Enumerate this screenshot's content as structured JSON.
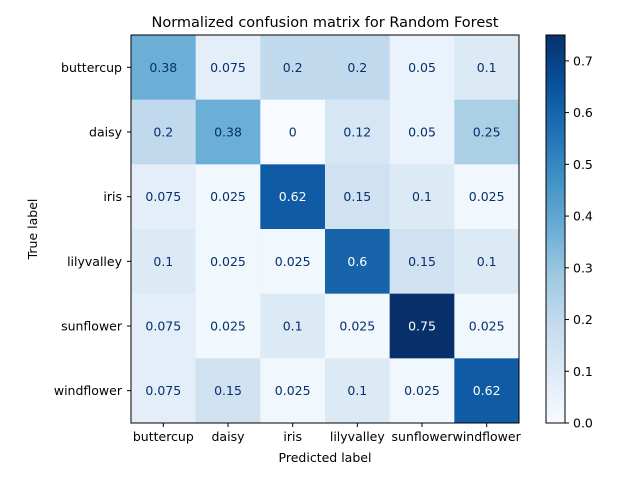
{
  "chart_data": {
    "type": "heatmap",
    "title": "Normalized confusion matrix for Random Forest",
    "xlabel": "Predicted label",
    "ylabel": "True label",
    "row_labels": [
      "buttercup",
      "daisy",
      "iris",
      "lilyvalley",
      "sunflower",
      "windflower"
    ],
    "col_labels": [
      "buttercup",
      "daisy",
      "iris",
      "lilyvalley",
      "sunflower",
      "windflower"
    ],
    "values": [
      [
        0.375,
        0.075,
        0.2,
        0.2,
        0.05,
        0.1
      ],
      [
        0.2,
        0.375,
        0,
        0.125,
        0.05,
        0.25
      ],
      [
        0.075,
        0.025,
        0.625,
        0.15,
        0.1,
        0.025
      ],
      [
        0.1,
        0.025,
        0.025,
        0.6,
        0.15,
        0.1
      ],
      [
        0.075,
        0.025,
        0.1,
        0.025,
        0.75,
        0.025
      ],
      [
        0.075,
        0.15,
        0.025,
        0.1,
        0.025,
        0.625
      ]
    ],
    "value_labels": [
      [
        "0.38",
        "0.075",
        "0.2",
        "0.2",
        "0.05",
        "0.1"
      ],
      [
        "0.2",
        "0.38",
        "0",
        "0.12",
        "0.05",
        "0.25"
      ],
      [
        "0.075",
        "0.025",
        "0.62",
        "0.15",
        "0.1",
        "0.025"
      ],
      [
        "0.1",
        "0.025",
        "0.025",
        "0.6",
        "0.15",
        "0.1"
      ],
      [
        "0.075",
        "0.025",
        "0.1",
        "0.025",
        "0.75",
        "0.025"
      ],
      [
        "0.075",
        "0.15",
        "0.025",
        "0.1",
        "0.025",
        "0.62"
      ]
    ],
    "colormap": "Blues",
    "vmin": 0,
    "vmax": 0.75,
    "colorbar": {
      "ticks": [
        0.0,
        0.1,
        0.2,
        0.3,
        0.4,
        0.5,
        0.6,
        0.7
      ],
      "tick_labels": [
        "0.0",
        "0.1",
        "0.2",
        "0.3",
        "0.4",
        "0.5",
        "0.6",
        "0.7"
      ]
    },
    "grid": false
  }
}
